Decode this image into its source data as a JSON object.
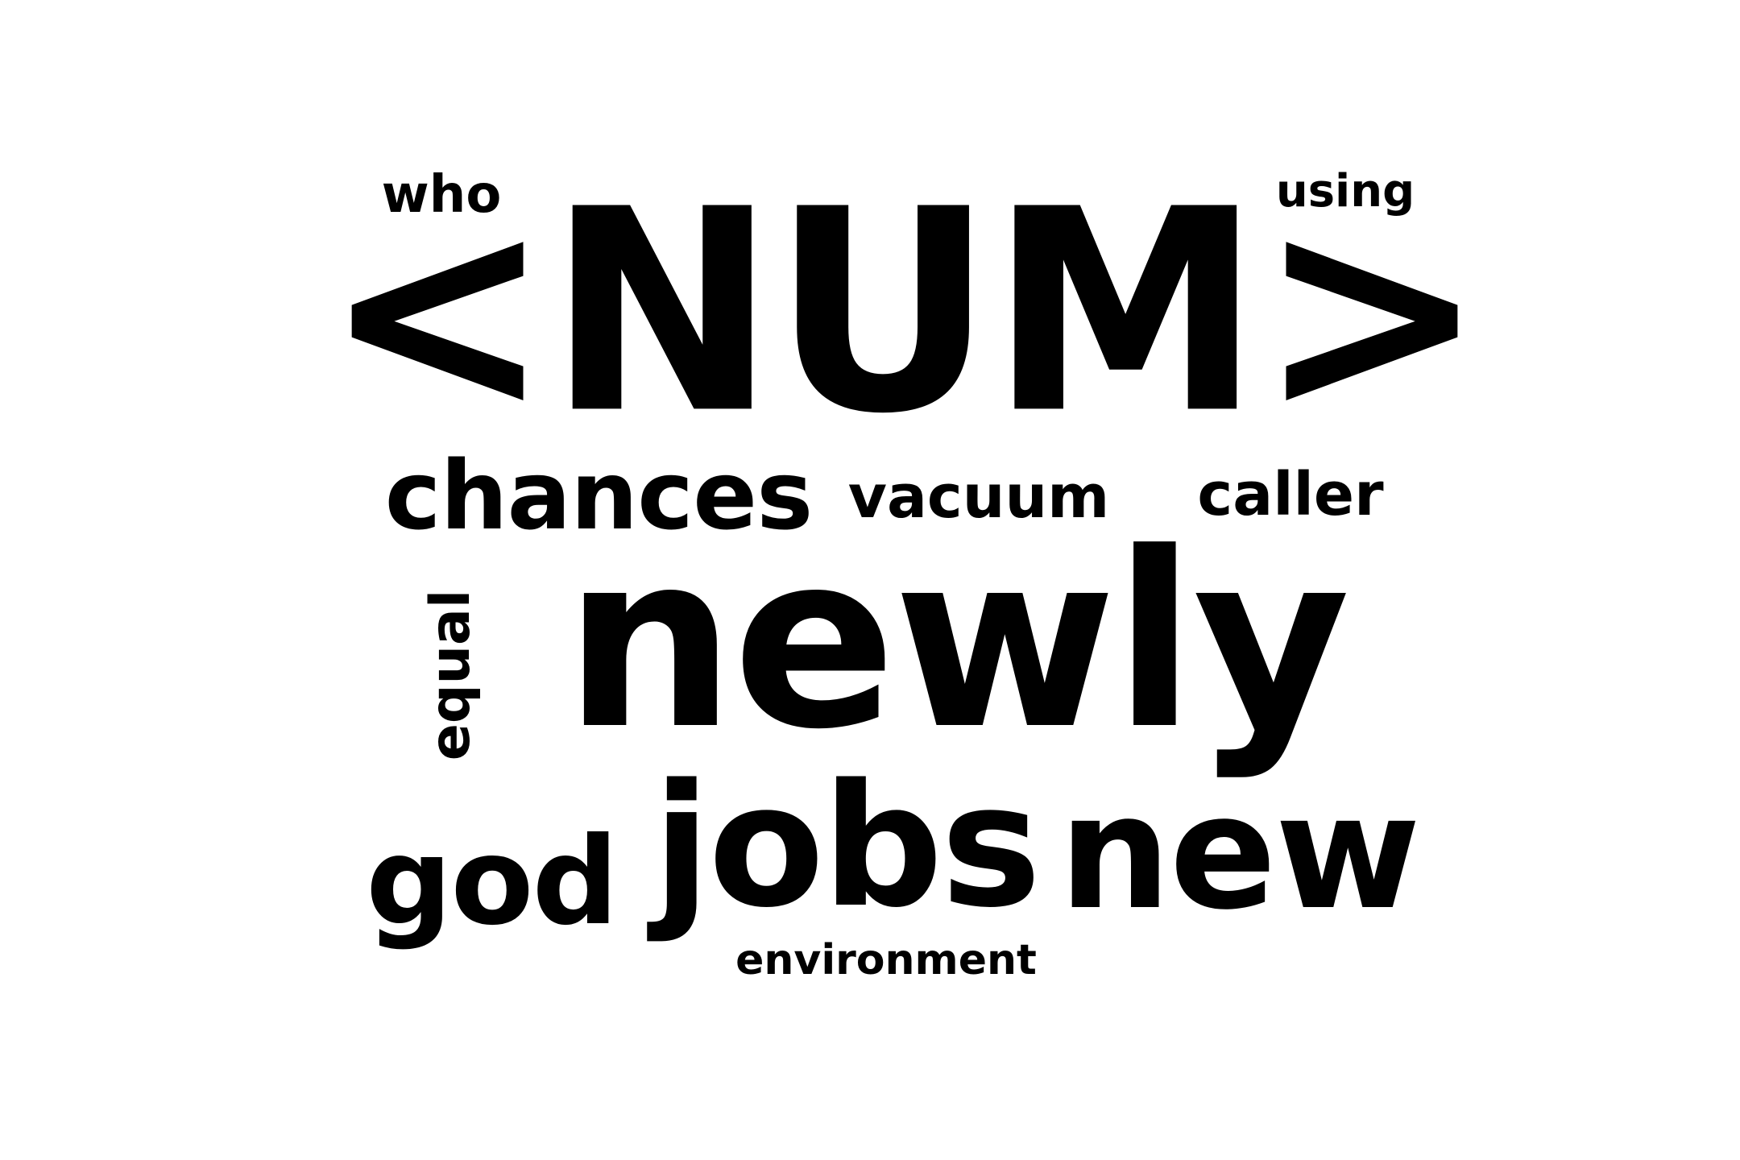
{
  "word_cloud": {
    "text_color": "#000000",
    "background_color": "#ffffff",
    "words": [
      {
        "text": "<NUM>"
      },
      {
        "text": "newly"
      },
      {
        "text": "jobs"
      },
      {
        "text": "new"
      },
      {
        "text": "god"
      },
      {
        "text": "chances"
      },
      {
        "text": "vacuum"
      },
      {
        "text": "caller"
      },
      {
        "text": "equal"
      },
      {
        "text": "who"
      },
      {
        "text": "using"
      },
      {
        "text": "environment"
      }
    ]
  }
}
